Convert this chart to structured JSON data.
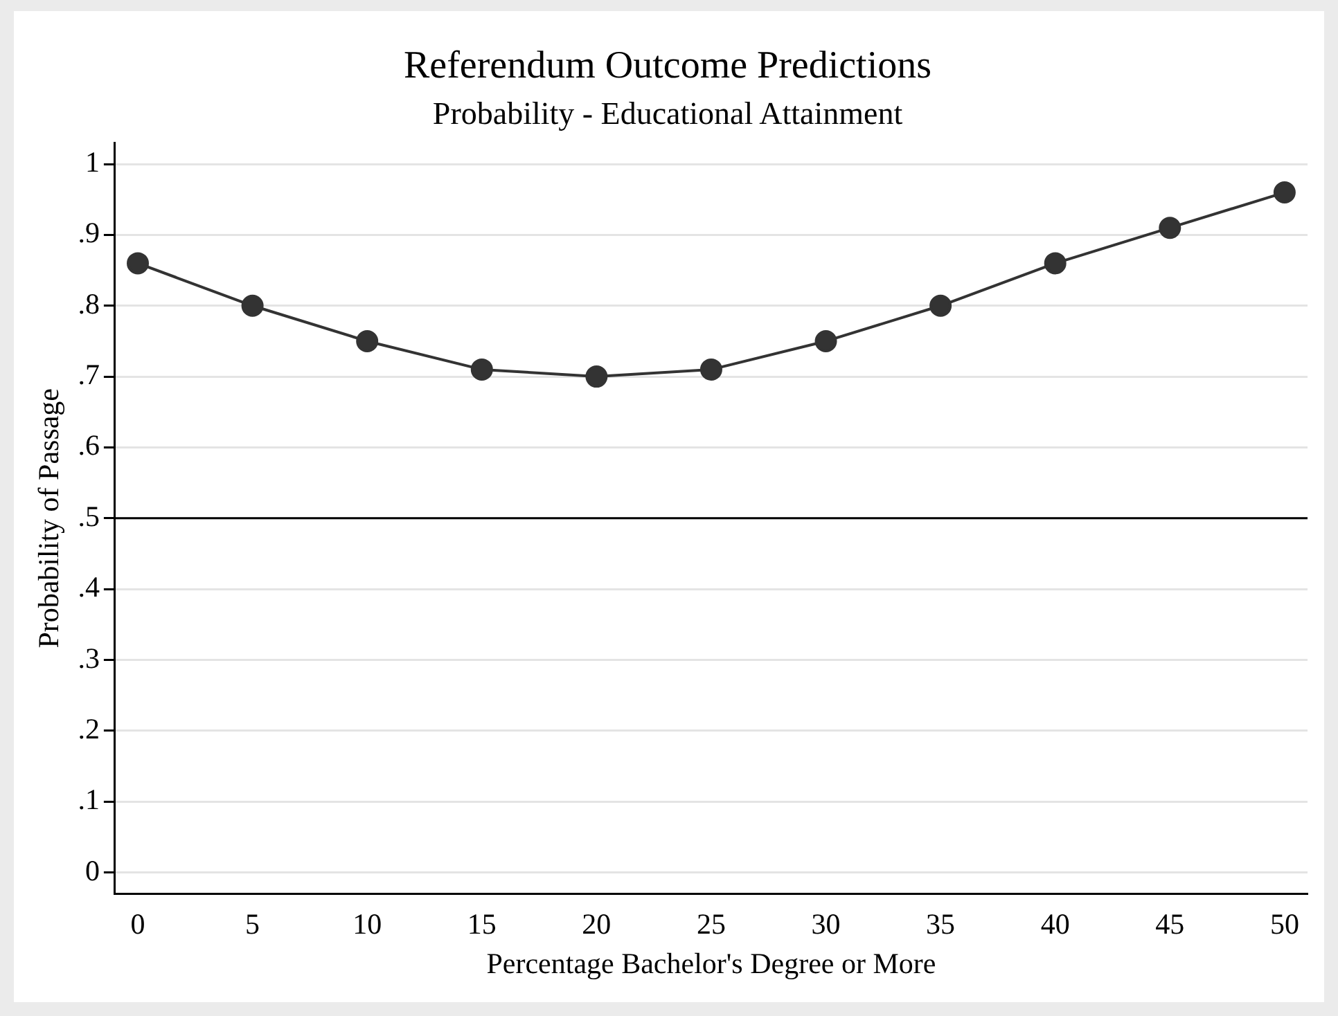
{
  "chart_data": {
    "type": "line",
    "title": "Referendum Outcome Predictions",
    "subtitle": "Probability - Educational Attainment",
    "xlabel": "Percentage Bachelor's Degree or More",
    "ylabel": "Probability of Passage",
    "x": [
      0,
      5,
      10,
      15,
      20,
      25,
      30,
      35,
      40,
      45,
      50
    ],
    "series": [
      {
        "color": "#333333",
        "values": [
          0.86,
          0.8,
          0.75,
          0.71,
          0.7,
          0.71,
          0.75,
          0.8,
          0.86,
          0.91,
          0.96
        ]
      }
    ],
    "marker": "circle",
    "line_style": "solid",
    "xlim": [
      -1,
      51
    ],
    "xticks": [
      0,
      5,
      10,
      15,
      20,
      25,
      30,
      35,
      40,
      45,
      50
    ],
    "ylim": [
      -0.03,
      1.03
    ],
    "yticks": [
      0,
      {
        "value": 0.1,
        "label": ".1"
      },
      {
        "value": 0.2,
        "label": ".2"
      },
      {
        "value": 0.3,
        "label": ".3"
      },
      {
        "value": 0.4,
        "label": ".4"
      },
      {
        "value": 0.5,
        "label": ".5"
      },
      {
        "value": 0.6,
        "label": ".6"
      },
      {
        "value": 0.7,
        "label": ".7"
      },
      {
        "value": 0.8,
        "label": ".8"
      },
      {
        "value": 0.9,
        "label": ".9"
      },
      1
    ],
    "grid": "y",
    "legend": false,
    "ref_lines": [
      {
        "axis": "y",
        "value": 0.5,
        "color": "#000000"
      }
    ]
  }
}
